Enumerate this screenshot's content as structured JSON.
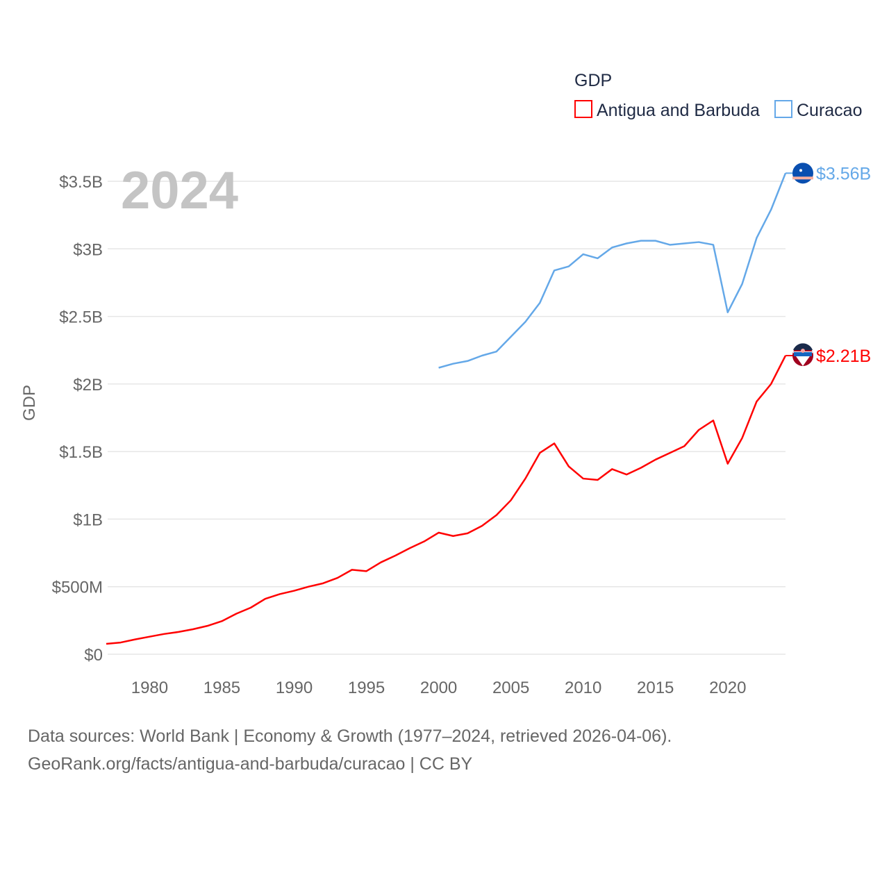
{
  "chart_data": {
    "type": "line",
    "title": "GDP",
    "year_label": "2024",
    "ylabel": "GDP",
    "xlabel": "",
    "xlim": [
      1977,
      2024
    ],
    "ylim": [
      0,
      3.5
    ],
    "grid": true,
    "legend_placement": "top-right",
    "x_ticks": [
      1980,
      1985,
      1990,
      1995,
      2000,
      2005,
      2010,
      2015,
      2020
    ],
    "x_tick_labels": [
      "1980",
      "1985",
      "1990",
      "1995",
      "2000",
      "2005",
      "2010",
      "2015",
      "2020"
    ],
    "y_ticks": [
      0,
      0.5,
      1,
      1.5,
      2,
      2.5,
      3,
      3.5
    ],
    "y_tick_labels": [
      "$0",
      "$500M",
      "$1B",
      "$1.5B",
      "$2B",
      "$2.5B",
      "$3B",
      "$3.5B"
    ],
    "units": "billion USD",
    "series": [
      {
        "name": "Antigua and Barbuda",
        "color": "#ff0000",
        "end_label": "$2.21B",
        "flag_icon": "antigua-and-barbuda-flag-icon",
        "x": [
          1977,
          1978,
          1979,
          1980,
          1981,
          1982,
          1983,
          1984,
          1985,
          1986,
          1987,
          1988,
          1989,
          1990,
          1991,
          1992,
          1993,
          1994,
          1995,
          1996,
          1997,
          1998,
          1999,
          2000,
          2001,
          2002,
          2003,
          2004,
          2005,
          2006,
          2007,
          2008,
          2009,
          2010,
          2011,
          2012,
          2013,
          2014,
          2015,
          2016,
          2017,
          2018,
          2019,
          2020,
          2021,
          2022,
          2023,
          2024
        ],
        "values": [
          0.077,
          0.087,
          0.11,
          0.13,
          0.15,
          0.165,
          0.185,
          0.21,
          0.245,
          0.3,
          0.345,
          0.41,
          0.445,
          0.47,
          0.5,
          0.525,
          0.565,
          0.625,
          0.615,
          0.68,
          0.73,
          0.785,
          0.835,
          0.9,
          0.875,
          0.895,
          0.95,
          1.03,
          1.14,
          1.3,
          1.49,
          1.56,
          1.39,
          1.3,
          1.29,
          1.37,
          1.33,
          1.38,
          1.44,
          1.49,
          1.54,
          1.66,
          1.73,
          1.41,
          1.6,
          1.87,
          2.0,
          2.21
        ]
      },
      {
        "name": "Curacao",
        "color": "#64a8e8",
        "end_label": "$3.56B",
        "flag_icon": "curacao-flag-icon",
        "x": [
          2000,
          2001,
          2002,
          2003,
          2004,
          2005,
          2006,
          2007,
          2008,
          2009,
          2010,
          2011,
          2012,
          2013,
          2014,
          2015,
          2016,
          2017,
          2018,
          2019,
          2020,
          2021,
          2022,
          2023,
          2024
        ],
        "values": [
          2.12,
          2.15,
          2.17,
          2.21,
          2.24,
          2.35,
          2.46,
          2.6,
          2.84,
          2.87,
          2.96,
          2.93,
          3.01,
          3.04,
          3.06,
          3.06,
          3.03,
          3.04,
          3.05,
          3.03,
          2.53,
          2.74,
          3.08,
          3.29,
          3.56
        ]
      }
    ]
  },
  "footer": {
    "line1": "Data sources: World Bank | Economy & Growth (1977–2024, retrieved 2026-04-06).",
    "line2": "GeoRank.org/facts/antigua-and-barbuda/curacao | CC BY"
  }
}
